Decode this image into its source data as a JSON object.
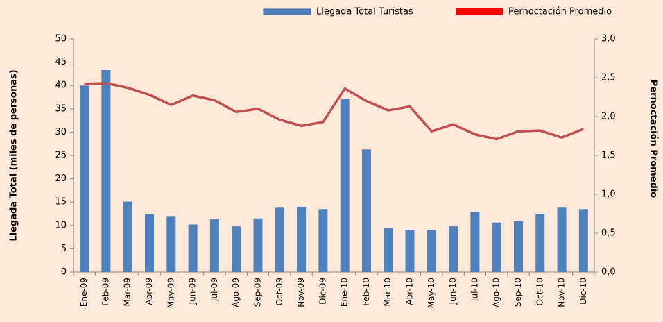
{
  "chart_data": {
    "type": "bar",
    "categories": [
      "Ene-09",
      "Feb-09",
      "Mar-09",
      "Abr-09",
      "May-09",
      "Jun-09",
      "Jul-09",
      "Ago-09",
      "Sep-09",
      "Oct-09",
      "Nov-09",
      "Dic-09",
      "Ene-10",
      "Feb-10",
      "Mar-10",
      "Abr-10",
      "May-10",
      "Jun-10",
      "Jul-10",
      "Ago-10",
      "Sep-10",
      "Oct-10",
      "Nov-10",
      "Dic-10"
    ],
    "series": [
      {
        "name": "Llegada Total  Turistas",
        "type": "bar",
        "color": "#4f81bd",
        "values": [
          40,
          43.3,
          15.1,
          12.4,
          12,
          10.2,
          11.3,
          9.8,
          11.5,
          13.8,
          14,
          13.5,
          37.1,
          26.3,
          9.5,
          9,
          9,
          9.8,
          12.9,
          10.6,
          10.9,
          12.4,
          13.8,
          13.5
        ]
      },
      {
        "name": "Pernoctación Promedio",
        "type": "line",
        "color": "#c0504d",
        "axis": "y2",
        "values": [
          2.42,
          2.43,
          2.37,
          2.28,
          2.15,
          2.27,
          2.21,
          2.06,
          2.1,
          1.96,
          1.88,
          1.93,
          2.36,
          2.2,
          2.08,
          2.13,
          1.81,
          1.9,
          1.77,
          1.71,
          1.81,
          1.82,
          1.73,
          1.84
        ]
      }
    ],
    "y_label": "Llegada Total (miles de personas)",
    "y2_label": "Pernoctación Promedio",
    "ylim": [
      0,
      50
    ],
    "yticks": [
      0,
      5,
      10,
      15,
      20,
      25,
      30,
      35,
      40,
      45,
      50
    ],
    "y2lim": [
      0,
      3
    ],
    "y2ticks": [
      {
        "value": 0,
        "label": "0,0"
      },
      {
        "value": 0.5,
        "label": "0,5"
      },
      {
        "value": 1,
        "label": "1,0"
      },
      {
        "value": 1.5,
        "label": "1,5"
      },
      {
        "value": 2,
        "label": "2,0"
      },
      {
        "value": 2.5,
        "label": "2,5"
      },
      {
        "value": 3,
        "label": "3,0"
      }
    ],
    "grid": false,
    "legend": "top-right"
  }
}
